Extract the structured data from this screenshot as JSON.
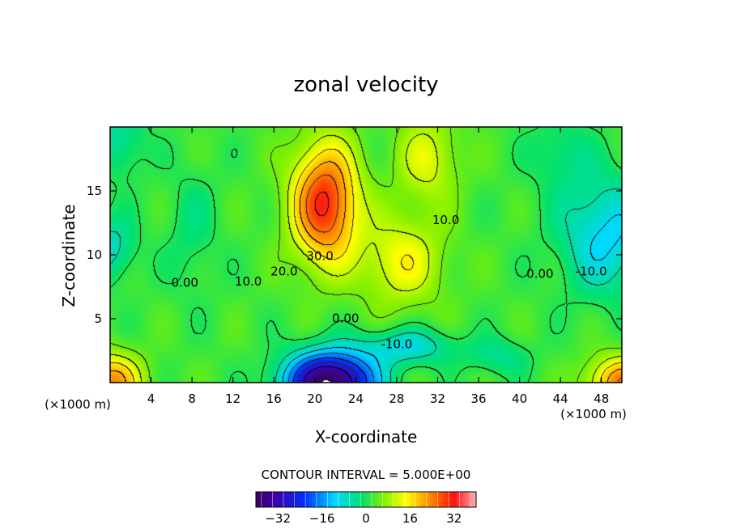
{
  "chart_data": {
    "type": "heatmap",
    "title": "zonal velocity",
    "xlabel": "X-coordinate",
    "ylabel": "Z-coordinate",
    "x_unit_left": "(×1000 m)",
    "x_unit_right": "(×1000 m)",
    "xlim": [
      0,
      50
    ],
    "ylim": [
      0,
      20
    ],
    "x_ticks": [
      4,
      8,
      12,
      16,
      20,
      24,
      28,
      32,
      36,
      40,
      44,
      48
    ],
    "y_ticks": [
      5,
      10,
      15
    ],
    "contour_interval_text": "CONTOUR INTERVAL = 5.000E+00",
    "colorbar": {
      "range": [
        -40,
        40
      ],
      "ticks": [
        -32,
        -16,
        0,
        16,
        32
      ]
    },
    "contour_labels": [
      {
        "text": "30.0",
        "x": 20.5,
        "y": 9.6
      },
      {
        "text": "20.0",
        "x": 17.0,
        "y": 8.4
      },
      {
        "text": "10.0",
        "x": 13.5,
        "y": 7.6
      },
      {
        "text": "10.0",
        "x": 32.8,
        "y": 12.4
      },
      {
        "text": "0.00",
        "x": 7.3,
        "y": 7.5
      },
      {
        "text": "0.00",
        "x": 23.0,
        "y": 4.7
      },
      {
        "text": "0.00",
        "x": 42.0,
        "y": 8.2
      },
      {
        "text": "-10.0",
        "x": 28.0,
        "y": 2.7
      },
      {
        "text": "-10.0",
        "x": 47.0,
        "y": 8.4
      }
    ],
    "centers": [
      {
        "x": 21.0,
        "y": 14.0,
        "amp": 29,
        "sx": 3.2,
        "sy": 4.6
      },
      {
        "x": 21.5,
        "y": 0.0,
        "amp": -43,
        "sx": 4.2,
        "sy": 2.3
      },
      {
        "x": 48.5,
        "y": 11.5,
        "amp": -13,
        "sx": 4.5,
        "sy": 4.5
      },
      {
        "x": 0.0,
        "y": 10.5,
        "amp": -9,
        "sx": 2.5,
        "sy": 2.5
      },
      {
        "x": 0.0,
        "y": 0.0,
        "amp": 21,
        "sx": 3.0,
        "sy": 2.2
      },
      {
        "x": 50.0,
        "y": 0.0,
        "amp": 22,
        "sx": 3.2,
        "sy": 2.0
      },
      {
        "x": 1.0,
        "y": 19.0,
        "amp": -7,
        "sx": 2.5,
        "sy": 3.0
      },
      {
        "x": 44.0,
        "y": 18.0,
        "amp": -5,
        "sx": 3.0,
        "sy": 3.0
      },
      {
        "x": 28.5,
        "y": 9.5,
        "amp": 12,
        "sx": 4.0,
        "sy": 3.5
      },
      {
        "x": 31.0,
        "y": 17.5,
        "amp": 10,
        "sx": 3.0,
        "sy": 3.5
      },
      {
        "x": 29.0,
        "y": 2.8,
        "amp": -11,
        "sx": 4.5,
        "sy": 1.4
      },
      {
        "x": 38.0,
        "y": 2.0,
        "amp": -6,
        "sx": 3.0,
        "sy": 1.5
      },
      {
        "x": 8.0,
        "y": 12.0,
        "amp": -4,
        "sx": 2.5,
        "sy": 5.0
      }
    ]
  }
}
